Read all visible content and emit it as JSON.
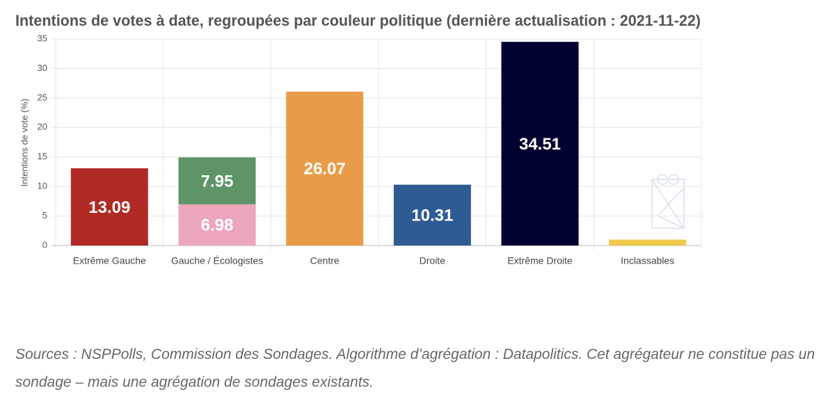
{
  "chart_data": {
    "type": "stacked_bar",
    "title": "Intentions de votes à date, regroupées par couleur politique (dernière actualisation : 2021-11-22)",
    "y_label": "Intentions de vote (%)",
    "categories": [
      "Extrême Gauche",
      "Gauche / Écologistes",
      "Centre",
      "Droite",
      "Extrême Droite",
      "Inclassables"
    ],
    "series": [
      {
        "colors": [
          "#b02a25",
          "#eca7bc",
          "#e99c48",
          "#2f5b93",
          "#020231",
          "#f0c94a"
        ],
        "values": [
          13.09,
          6.98,
          26.07,
          10.31,
          34.51,
          1
        ],
        "value_labels": [
          "13.09",
          "6.98",
          "26.07",
          "10.31",
          "34.51",
          null
        ]
      },
      {
        "colors": [
          null,
          "#5e9466",
          null,
          null,
          null,
          null
        ],
        "values": [
          null,
          7.95,
          null,
          null,
          null,
          null
        ],
        "value_labels": [
          null,
          "7.95",
          null,
          null,
          null,
          null
        ]
      }
    ],
    "ylim": [
      0,
      35
    ],
    "yticks": [
      0,
      5,
      10,
      15,
      20,
      25,
      30,
      35
    ],
    "grid": true
  },
  "footer": {
    "source": "Sources : NSPPolls, Commission des Sondages. Algorithme d’agrégation : Datapolitics. Cet agrégateur ne constitue pas un sondage – mais une agrégation de sondages existants."
  }
}
